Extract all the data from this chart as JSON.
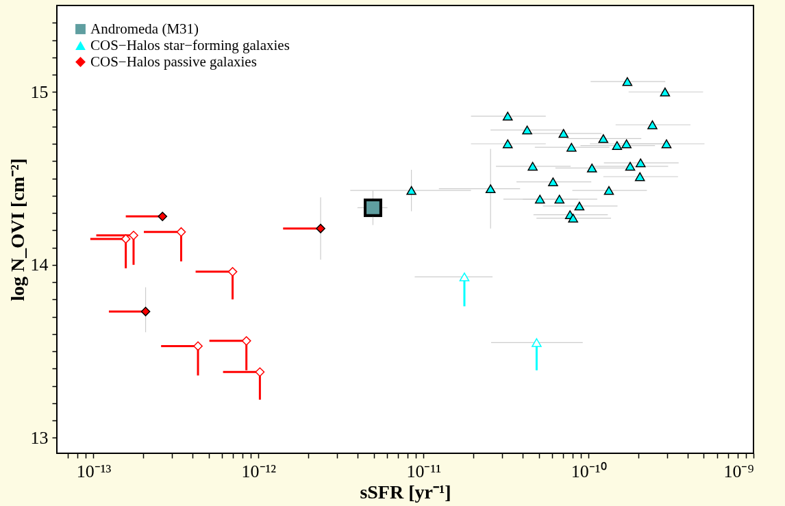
{
  "chart_data": {
    "type": "scatter",
    "xlabel": "sSFR [yr⁻¹]",
    "ylabel": "log N_OVI [cm⁻²]",
    "log": "x",
    "grid": false,
    "legend": "top left",
    "xlim": [
      6e-14,
      1e-09
    ],
    "ylim": [
      12.91,
      15.5
    ],
    "xticks": [
      {
        "value": 7e-14,
        "label": null
      },
      {
        "value": 8e-14,
        "label": null
      },
      {
        "value": 9e-14,
        "label": null
      },
      {
        "value": 1e-13,
        "label": "10⁻¹³"
      },
      {
        "value": 2e-13,
        "label": null
      },
      {
        "value": 3e-13,
        "label": null
      },
      {
        "value": 4e-13,
        "label": null
      },
      {
        "value": 5e-13,
        "label": null
      },
      {
        "value": 6e-13,
        "label": null
      },
      {
        "value": 7e-13,
        "label": null
      },
      {
        "value": 8e-13,
        "label": null
      },
      {
        "value": 9e-13,
        "label": null
      },
      {
        "value": 1e-12,
        "label": "10⁻¹²"
      },
      {
        "value": 2e-12,
        "label": null
      },
      {
        "value": 3e-12,
        "label": null
      },
      {
        "value": 4e-12,
        "label": null
      },
      {
        "value": 5e-12,
        "label": null
      },
      {
        "value": 6e-12,
        "label": null
      },
      {
        "value": 7e-12,
        "label": null
      },
      {
        "value": 8e-12,
        "label": null
      },
      {
        "value": 9e-12,
        "label": null
      },
      {
        "value": 1e-11,
        "label": "10⁻¹¹"
      },
      {
        "value": 2e-11,
        "label": null
      },
      {
        "value": 3e-11,
        "label": null
      },
      {
        "value": 4e-11,
        "label": null
      },
      {
        "value": 5e-11,
        "label": null
      },
      {
        "value": 6e-11,
        "label": null
      },
      {
        "value": 7e-11,
        "label": null
      },
      {
        "value": 8e-11,
        "label": null
      },
      {
        "value": 9e-11,
        "label": null
      },
      {
        "value": 1e-10,
        "label": "10⁻¹⁰"
      },
      {
        "value": 2e-10,
        "label": null
      },
      {
        "value": 3e-10,
        "label": null
      },
      {
        "value": 4e-10,
        "label": null
      },
      {
        "value": 5e-10,
        "label": null
      },
      {
        "value": 6e-10,
        "label": null
      },
      {
        "value": 7e-10,
        "label": null
      },
      {
        "value": 8e-10,
        "label": null
      },
      {
        "value": 9e-10,
        "label": null
      },
      {
        "value": 1e-09,
        "label": "10⁻⁹"
      }
    ],
    "yticks": [
      {
        "value": 13.0,
        "label": "13"
      },
      {
        "value": 13.1,
        "label": null
      },
      {
        "value": 13.2,
        "label": null
      },
      {
        "value": 13.3,
        "label": null
      },
      {
        "value": 13.4,
        "label": null
      },
      {
        "value": 13.5,
        "label": null
      },
      {
        "value": 13.6,
        "label": null
      },
      {
        "value": 13.7,
        "label": null
      },
      {
        "value": 13.8,
        "label": null
      },
      {
        "value": 13.9,
        "label": null
      },
      {
        "value": 14.0,
        "label": "14"
      },
      {
        "value": 14.1,
        "label": null
      },
      {
        "value": 14.2,
        "label": null
      },
      {
        "value": 14.3,
        "label": null
      },
      {
        "value": 14.4,
        "label": null
      },
      {
        "value": 14.5,
        "label": null
      },
      {
        "value": 14.6,
        "label": null
      },
      {
        "value": 14.7,
        "label": null
      },
      {
        "value": 14.8,
        "label": null
      },
      {
        "value": 14.9,
        "label": null
      },
      {
        "value": 15.0,
        "label": "15"
      },
      {
        "value": 15.1,
        "label": null
      },
      {
        "value": 15.2,
        "label": null
      },
      {
        "value": 15.3,
        "label": null
      },
      {
        "value": 15.4,
        "label": null
      }
    ],
    "series": [
      {
        "name": "Andromeda (M31)",
        "color": "#5f9ea0",
        "marker": "square",
        "x": [
          4.94e-12
        ],
        "values": [
          14.33
        ],
        "errors": [
          [
            14.23,
            14.43
          ]
        ],
        "xerrors": [
          [
            3.98e-12,
            6.05e-12
          ]
        ]
      },
      {
        "name": "COS−Halos star−forming galaxies",
        "color": "#00ffff",
        "marker": "triangle",
        "x": [
          1.72e-10,
          2.91e-10,
          3.24e-11,
          4.25e-11,
          7.06e-11,
          2.44e-10,
          1.23e-10,
          3.24e-11,
          7.89e-11,
          1.49e-10,
          1.7e-10,
          2.97e-10,
          4.59e-11,
          1.05e-10,
          1.79e-10,
          2.07e-10,
          2.05e-10,
          8.45e-12,
          2.55e-11,
          6.1e-11,
          1.33e-10,
          5.08e-11,
          6.67e-11,
          8.81e-11,
          7.73e-11,
          8.07e-11
        ],
        "values": [
          15.06,
          15.0,
          14.86,
          14.78,
          14.76,
          14.81,
          14.73,
          14.7,
          14.68,
          14.69,
          14.7,
          14.7,
          14.57,
          14.56,
          14.57,
          14.59,
          14.51,
          14.43,
          14.44,
          14.48,
          14.43,
          14.38,
          14.38,
          14.34,
          14.29,
          14.27
        ],
        "errors": [
          null,
          null,
          null,
          null,
          null,
          null,
          null,
          null,
          null,
          null,
          null,
          null,
          null,
          null,
          null,
          null,
          null,
          [
            14.31,
            14.55
          ],
          [
            14.21,
            14.67
          ],
          null,
          null,
          null,
          null,
          null,
          null,
          null
        ],
        "xerrors": [
          [
            1.03e-10,
            2.92e-10
          ],
          [
            1.75e-10,
            4.95e-10
          ],
          [
            1.94e-11,
            5.51e-11
          ],
          [
            2.55e-11,
            7.23e-11
          ],
          [
            4.24e-11,
            1.2e-10
          ],
          [
            1.46e-10,
            4.15e-10
          ],
          [
            7.38e-11,
            2.09e-10
          ],
          [
            1.94e-11,
            5.51e-11
          ],
          [
            4.73e-11,
            1.34e-10
          ],
          [
            8.94e-11,
            2.53e-10
          ],
          [
            1.02e-10,
            2.89e-10
          ],
          [
            1.78e-10,
            5.05e-10
          ],
          [
            2.75e-11,
            7.8e-11
          ],
          [
            6.3e-11,
            1.79e-10
          ],
          [
            1.07e-10,
            3.04e-10
          ],
          [
            1.24e-10,
            3.52e-10
          ],
          [
            1.23e-10,
            3.49e-10
          ],
          [
            3.6e-12,
            1.94e-11
          ],
          [
            1.24e-11,
            3.85e-11
          ],
          [
            3.66e-11,
            1.04e-10
          ],
          [
            7.98e-11,
            2.26e-10
          ],
          [
            3.05e-11,
            8.64e-11
          ],
          [
            4e-11,
            1.13e-10
          ],
          [
            5.29e-11,
            1.5e-10
          ],
          [
            4.64e-11,
            1.31e-10
          ],
          [
            4.84e-11,
            1.37e-10
          ]
        ]
      },
      {
        "color": "#00ffff",
        "marker": "triangle",
        "x": [
          1.77e-11,
          4.85e-11
        ],
        "values": [
          13.93,
          13.55
        ],
        "errors": [
          [
            13.76,
            13.93
          ],
          [
            13.39,
            13.55
          ]
        ],
        "xerrors": [
          [
            8.85e-12,
            2.62e-11
          ],
          [
            2.57e-11,
            9.23e-11
          ]
        ]
      },
      {
        "name": "COS−Halos passive galaxies",
        "color": "#ff0000",
        "marker": "diamond",
        "x": [
          2.62e-13,
          2.07e-13,
          2.38e-12
        ],
        "values": [
          14.28,
          13.73,
          14.21
        ],
        "errors": [
          null,
          [
            13.61,
            13.87
          ],
          [
            14.03,
            14.39
          ]
        ],
        "xerrors": [
          [
            1.57e-13,
            2.62e-13
          ],
          [
            1.24e-13,
            2.07e-13
          ],
          [
            1.41e-12,
            2.38e-12
          ]
        ]
      },
      {
        "color": "#ff0000",
        "marker": "diamond",
        "x": [
          1.57e-13,
          1.75e-13,
          3.4e-13,
          6.97e-13,
          4.3e-13,
          8.45e-13,
          1.02e-12
        ],
        "values": [
          14.15,
          14.17,
          14.19,
          13.96,
          13.53,
          13.56,
          13.38
        ],
        "errors": [
          [
            13.98,
            14.15
          ],
          [
            14.0,
            14.17
          ],
          [
            14.02,
            14.19
          ],
          [
            13.8,
            13.96
          ],
          [
            13.36,
            13.53
          ],
          [
            13.39,
            13.56
          ],
          [
            13.22,
            13.38
          ]
        ],
        "xerrors": [
          [
            9.57e-14,
            1.57e-13
          ],
          [
            1.04e-13,
            1.75e-13
          ],
          [
            2.02e-13,
            3.4e-13
          ],
          [
            4.16e-13,
            6.97e-13
          ],
          [
            2.57e-13,
            4.3e-13
          ],
          [
            5.04e-13,
            8.45e-13
          ],
          [
            6.1e-13,
            1.02e-12
          ]
        ]
      }
    ]
  }
}
